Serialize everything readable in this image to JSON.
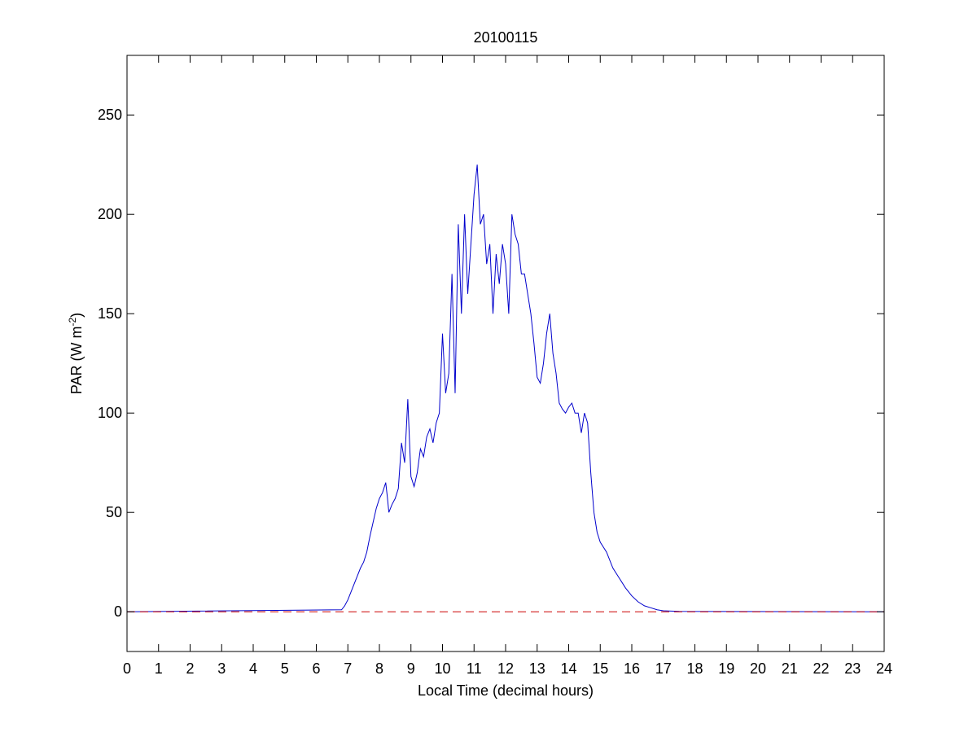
{
  "chart_data": {
    "type": "line",
    "title": "20100115",
    "xlabel": "Local Time (decimal hours)",
    "ylabel": {
      "prefix": "PAR (W m",
      "superscript": "-2",
      "suffix": ")"
    },
    "xlim": [
      0,
      24
    ],
    "ylim": [
      -20,
      280
    ],
    "xticks": [
      0,
      1,
      2,
      3,
      4,
      5,
      6,
      7,
      8,
      9,
      10,
      11,
      12,
      13,
      14,
      15,
      16,
      17,
      18,
      19,
      20,
      21,
      22,
      23,
      24
    ],
    "yticks": [
      0,
      50,
      100,
      150,
      200,
      250
    ],
    "grid": false,
    "series": [
      {
        "color": "#0000cc",
        "style": "solid",
        "x": [
          0,
          6.8,
          6.9,
          7.0,
          7.1,
          7.2,
          7.3,
          7.4,
          7.5,
          7.6,
          7.7,
          7.8,
          7.9,
          8.0,
          8.1,
          8.2,
          8.25,
          8.3,
          8.4,
          8.5,
          8.6,
          8.7,
          8.8,
          8.9,
          9.0,
          9.1,
          9.2,
          9.3,
          9.4,
          9.5,
          9.6,
          9.7,
          9.8,
          9.9,
          10.0,
          10.1,
          10.2,
          10.3,
          10.4,
          10.5,
          10.6,
          10.7,
          10.8,
          10.9,
          11.0,
          11.1,
          11.2,
          11.3,
          11.4,
          11.5,
          11.6,
          11.7,
          11.8,
          11.9,
          12.0,
          12.1,
          12.2,
          12.3,
          12.4,
          12.5,
          12.6,
          12.7,
          12.8,
          12.9,
          13.0,
          13.1,
          13.2,
          13.3,
          13.4,
          13.5,
          13.6,
          13.7,
          13.8,
          13.9,
          14.0,
          14.1,
          14.2,
          14.3,
          14.4,
          14.5,
          14.6,
          14.7,
          14.8,
          14.9,
          15.0,
          15.2,
          15.4,
          15.6,
          15.8,
          16.0,
          16.2,
          16.4,
          16.6,
          16.8,
          17.0,
          17.5,
          24
        ],
        "y": [
          0,
          1,
          3,
          6,
          10,
          14,
          18,
          22,
          25,
          30,
          38,
          45,
          52,
          57,
          60,
          65,
          58,
          50,
          54,
          57,
          62,
          85,
          75,
          107,
          68,
          63,
          70,
          82,
          78,
          88,
          92,
          85,
          95,
          100,
          140,
          110,
          120,
          170,
          110,
          195,
          150,
          200,
          160,
          185,
          210,
          225,
          195,
          200,
          175,
          185,
          150,
          180,
          165,
          185,
          175,
          150,
          200,
          190,
          185,
          170,
          170,
          160,
          150,
          135,
          118,
          115,
          125,
          140,
          150,
          130,
          120,
          105,
          102,
          100,
          103,
          105,
          100,
          100,
          90,
          100,
          95,
          70,
          50,
          40,
          35,
          30,
          22,
          17,
          12,
          8,
          5,
          3,
          2,
          1,
          0.5,
          0.2,
          0
        ]
      },
      {
        "color": "#cc0000",
        "style": "dashed",
        "x": [
          0,
          24
        ],
        "y": [
          0,
          0
        ]
      }
    ]
  }
}
